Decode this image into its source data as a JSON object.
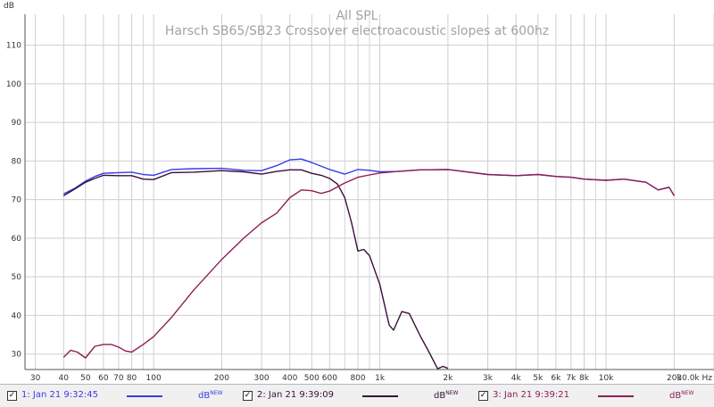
{
  "chart_data": {
    "type": "line",
    "title": "All SPL",
    "subtitle": "Harsch SB65/SB23 Crossover electroacoustic slopes at 600hz",
    "ylabel": "dB",
    "xlabel": "Hz",
    "xscale": "log",
    "xlim": [
      27,
      30000
    ],
    "ylim": [
      26,
      118
    ],
    "grid": true,
    "y_ticks": [
      30,
      40,
      50,
      60,
      70,
      80,
      90,
      100,
      110
    ],
    "x_ticks": [
      {
        "value": 30,
        "label": "30"
      },
      {
        "value": 40,
        "label": "40"
      },
      {
        "value": 50,
        "label": "50"
      },
      {
        "value": 60,
        "label": "60"
      },
      {
        "value": 70,
        "label": "70"
      },
      {
        "value": 80,
        "label": "80"
      },
      {
        "value": 100,
        "label": "100"
      },
      {
        "value": 200,
        "label": "200"
      },
      {
        "value": 300,
        "label": "300"
      },
      {
        "value": 400,
        "label": "400"
      },
      {
        "value": 500,
        "label": "500"
      },
      {
        "value": 600,
        "label": "600"
      },
      {
        "value": 800,
        "label": "800"
      },
      {
        "value": 1000,
        "label": "1k"
      },
      {
        "value": 2000,
        "label": "2k"
      },
      {
        "value": 3000,
        "label": "3k"
      },
      {
        "value": 4000,
        "label": "4k"
      },
      {
        "value": 5000,
        "label": "5k"
      },
      {
        "value": 6000,
        "label": "6k"
      },
      {
        "value": 7000,
        "label": "7k"
      },
      {
        "value": 8000,
        "label": "8k"
      },
      {
        "value": 10000,
        "label": "10k"
      },
      {
        "value": 20000,
        "label": "20k"
      },
      {
        "value": 30000,
        "label": "30.0k Hz"
      }
    ],
    "x_minor_grid": [
      90,
      700,
      900,
      9000
    ],
    "series": [
      {
        "name": "1: Jan 21 9:32:45",
        "color": "#3a3ae8",
        "unit": "dB",
        "unit_badge": "NEW",
        "x": [
          40,
          45,
          50,
          55,
          60,
          70,
          80,
          90,
          100,
          120,
          150,
          200,
          250,
          300,
          350,
          400,
          450,
          500,
          600,
          700,
          800,
          900,
          1000,
          1200,
          1500,
          2000,
          3000,
          4000,
          5000,
          6000,
          7000,
          8000,
          10000,
          12000,
          15000,
          17000,
          19000,
          20000
        ],
        "y": [
          71.5,
          73,
          74.8,
          76,
          76.8,
          77,
          77.1,
          76.5,
          76.3,
          77.8,
          78,
          78.1,
          77.6,
          77.5,
          78.8,
          80.3,
          80.5,
          79.6,
          77.8,
          76.6,
          77.8,
          77.6,
          77.2,
          77.3,
          77.7,
          77.8,
          76.5,
          76.2,
          76.5,
          76,
          75.8,
          75.3,
          75,
          75.3,
          74.5,
          72.5,
          73.2,
          71
        ]
      },
      {
        "name": "2: Jan 21 9:39:09",
        "color": "#3a0f3c",
        "unit": "dB",
        "unit_badge": "NEW",
        "x": [
          40,
          45,
          50,
          55,
          60,
          70,
          80,
          90,
          100,
          120,
          150,
          200,
          250,
          300,
          350,
          400,
          450,
          500,
          550,
          600,
          650,
          700,
          750,
          800,
          850,
          900,
          1000,
          1100,
          1150,
          1250,
          1350,
          1500,
          1650,
          1800,
          1900,
          2000
        ],
        "y": [
          71,
          72.8,
          74.5,
          75.5,
          76.3,
          76.2,
          76.2,
          75.3,
          75.2,
          77,
          77.1,
          77.5,
          77.2,
          76.6,
          77.3,
          77.7,
          77.7,
          76.8,
          76.3,
          75.5,
          74,
          70.5,
          64,
          56.7,
          57.1,
          55.5,
          48,
          37.5,
          36.2,
          41,
          40.5,
          35,
          30.5,
          26.2,
          26.8,
          26.3
        ]
      },
      {
        "name": "3: Jan 21 9:39:21",
        "color": "#8e1e55",
        "unit": "dB",
        "unit_badge": "NEW",
        "x": [
          40,
          43,
          46,
          50,
          55,
          60,
          65,
          70,
          75,
          80,
          90,
          100,
          120,
          150,
          200,
          250,
          300,
          350,
          400,
          450,
          500,
          550,
          600,
          700,
          800,
          900,
          1000,
          1200,
          1500,
          2000,
          3000,
          4000,
          5000,
          6000,
          7000,
          8000,
          10000,
          12000,
          15000,
          17000,
          19000,
          20000
        ],
        "y": [
          29.2,
          31,
          30.5,
          29,
          32,
          32.5,
          32.5,
          31.8,
          30.8,
          30.5,
          32.5,
          34.5,
          39.5,
          46.5,
          54.5,
          60,
          64,
          66.5,
          70.5,
          72.5,
          72.3,
          71.6,
          72.2,
          74.3,
          75.8,
          76.4,
          76.9,
          77.3,
          77.7,
          77.8,
          76.5,
          76.2,
          76.5,
          76,
          75.8,
          75.3,
          75,
          75.3,
          74.5,
          72.5,
          73.2,
          71
        ]
      }
    ]
  }
}
